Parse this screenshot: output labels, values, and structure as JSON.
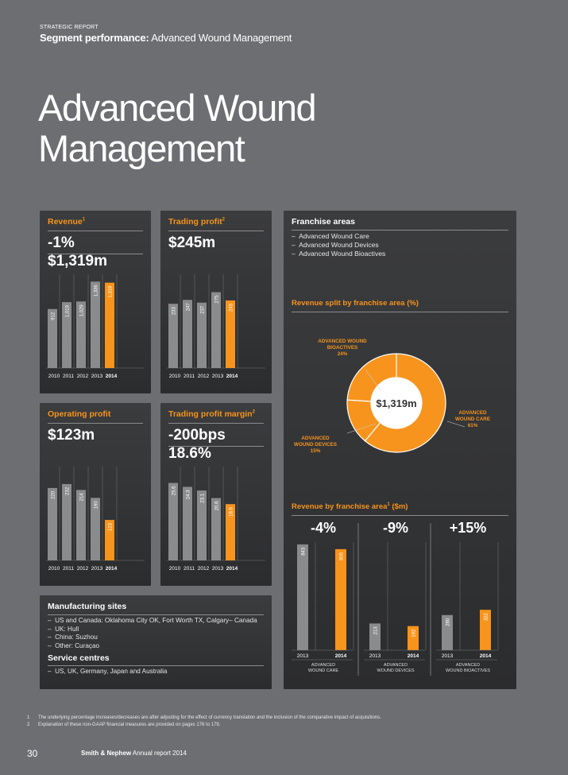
{
  "header": {
    "overline": "STRATEGIC REPORT",
    "subhead_bold": "Segment performance:",
    "subhead_rest": " Advanced Wound Management"
  },
  "title_line1": "Advanced Wound",
  "title_line2": "Management",
  "colors": {
    "accent": "#f7941d",
    "bar_grey": "#8a8b8d",
    "background": "#6d6e71",
    "panel": "#333436"
  },
  "revenue": {
    "title": "Revenue",
    "footnote_ref": "1",
    "change": "-1%",
    "value": "$1,319m"
  },
  "trading_profit": {
    "title": "Trading profit",
    "footnote_ref": "2",
    "value": "$245m"
  },
  "operating_profit": {
    "title": "Operating profit",
    "value": "$123m"
  },
  "trading_profit_margin": {
    "title": "Trading profit margin",
    "footnote_ref": "2",
    "change": "-200bps",
    "value": "18.6%"
  },
  "franchise": {
    "title": "Franchise areas",
    "items": [
      "Advanced Wound Care",
      "Advanced Wound Devices",
      "Advanced Wound Bioactives"
    ],
    "split_title": "Revenue split by franchise area (%)",
    "donut_center": "$1,319m",
    "donut_labels": [
      {
        "line1": "ADVANCED WOUND",
        "line2": "BIOACTIVES",
        "pct": "24%"
      },
      {
        "line1": "ADVANCED",
        "line2": "WOUND CARE",
        "pct": "61%"
      },
      {
        "line1": "ADVANCED",
        "line2": "WOUND DEVICES",
        "pct": "15%"
      }
    ],
    "rev_title": "Revenue by franchise area",
    "rev_title_ref": "1",
    "rev_title_unit": " ($m)"
  },
  "manufacturing": {
    "title": "Manufacturing sites",
    "items": [
      "US and Canada: Oklahoma City OK, Fort Worth TX, Calgary– Canada",
      "UK: Hull",
      "China: Suzhou",
      "Other: Curaçao"
    ],
    "service_title": "Service centres",
    "service_items": [
      "US, UK, Germany, Japan and Australia"
    ]
  },
  "footnotes": [
    {
      "num": "1",
      "text": "The underlying percentage increases/decreases are after adjusting for the effect of currency translation and the inclusion of the comparative impact of acquisitions."
    },
    {
      "num": "2",
      "text": "Explanation of these non-GAAP financial measures are provided on pages 176 to 179."
    }
  ],
  "footer": {
    "page": "30",
    "brand_bold": "Smith & Nephew",
    "brand_rest": " Annual report 2014"
  },
  "chart_data": [
    {
      "type": "bar",
      "title": "Revenue",
      "categories": [
        "2010",
        "2011",
        "2012",
        "2013",
        "2014"
      ],
      "values": [
        912,
        1019,
        1029,
        1336,
        1319
      ],
      "labels": [
        "912",
        "1,019",
        "1,029",
        "1,336",
        "1,319"
      ],
      "highlight": "2014"
    },
    {
      "type": "bar",
      "title": "Trading profit",
      "categories": [
        "2010",
        "2011",
        "2012",
        "2013",
        "2014"
      ],
      "values": [
        233,
        247,
        237,
        275,
        245
      ],
      "labels": [
        "233",
        "247",
        "237",
        "275",
        "245"
      ],
      "highlight": "2014"
    },
    {
      "type": "bar",
      "title": "Operating profit",
      "categories": [
        "2010",
        "2011",
        "2012",
        "2013",
        "2014"
      ],
      "values": [
        220,
        232,
        214,
        190,
        123
      ],
      "labels": [
        "220",
        "232",
        "214",
        "190",
        "123"
      ],
      "highlight": "2014"
    },
    {
      "type": "bar",
      "title": "Trading profit margin",
      "categories": [
        "2010",
        "2011",
        "2012",
        "2013",
        "2014"
      ],
      "values": [
        25.6,
        24.3,
        23.1,
        20.6,
        18.6
      ],
      "labels": [
        "25.6",
        "24.3",
        "23.1",
        "20.6",
        "18.6"
      ],
      "highlight": "2014"
    },
    {
      "type": "pie",
      "title": "Revenue split by franchise area (%)",
      "categories": [
        "Advanced Wound Care",
        "Advanced Wound Devices",
        "Advanced Wound Bioactives"
      ],
      "values": [
        61,
        15,
        24
      ]
    },
    {
      "type": "bar",
      "title": "Revenue by franchise area ($m)",
      "groups": [
        {
          "name": "ADVANCED WOUND CARE",
          "change": "-4%",
          "categories": [
            "2013",
            "2014"
          ],
          "values": [
            843,
            805
          ]
        },
        {
          "name": "ADVANCED WOUND DEVICES",
          "change": "-9%",
          "categories": [
            "2013",
            "2014"
          ],
          "values": [
            213,
            192
          ]
        },
        {
          "name": "ADVANCED WOUND BIOACTIVES",
          "change": "+15%",
          "categories": [
            "2013",
            "2014"
          ],
          "values": [
            280,
            322
          ]
        }
      ]
    }
  ]
}
